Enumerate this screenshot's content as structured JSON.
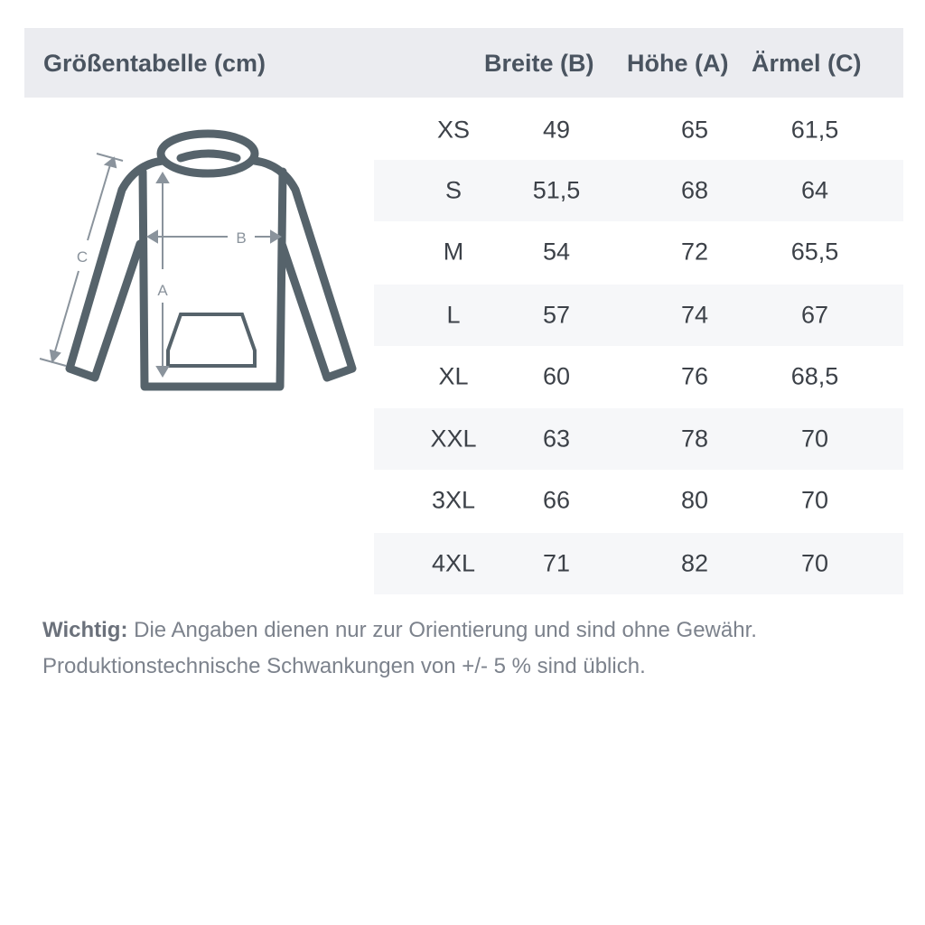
{
  "table": {
    "title": "Größentabelle (cm)",
    "columns": [
      "Breite (B)",
      "Höhe (A)",
      "Ärmel (C)"
    ],
    "rows": [
      {
        "size": "XS",
        "values": [
          "49",
          "65",
          "61,5"
        ]
      },
      {
        "size": "S",
        "values": [
          "51,5",
          "68",
          "64"
        ]
      },
      {
        "size": "M",
        "values": [
          "54",
          "72",
          "65,5"
        ]
      },
      {
        "size": "L",
        "values": [
          "57",
          "74",
          "67"
        ]
      },
      {
        "size": "XL",
        "values": [
          "60",
          "76",
          "68,5"
        ]
      },
      {
        "size": "XXL",
        "values": [
          "63",
          "78",
          "70"
        ]
      },
      {
        "size": "3XL",
        "values": [
          "66",
          "80",
          "70"
        ]
      },
      {
        "size": "4XL",
        "values": [
          "71",
          "82",
          "70"
        ]
      }
    ]
  },
  "diagram": {
    "label_a": "A",
    "label_b": "B",
    "label_c": "C",
    "outline_color": "#56636b",
    "arrow_color": "#8a939c"
  },
  "note": {
    "label": "Wichtig:",
    "line1": " Die Angaben dienen nur zur Orientierung und sind ohne Gewähr.",
    "line2": "Produktionstechnische Schwankungen von +/- 5 % sind üblich."
  }
}
